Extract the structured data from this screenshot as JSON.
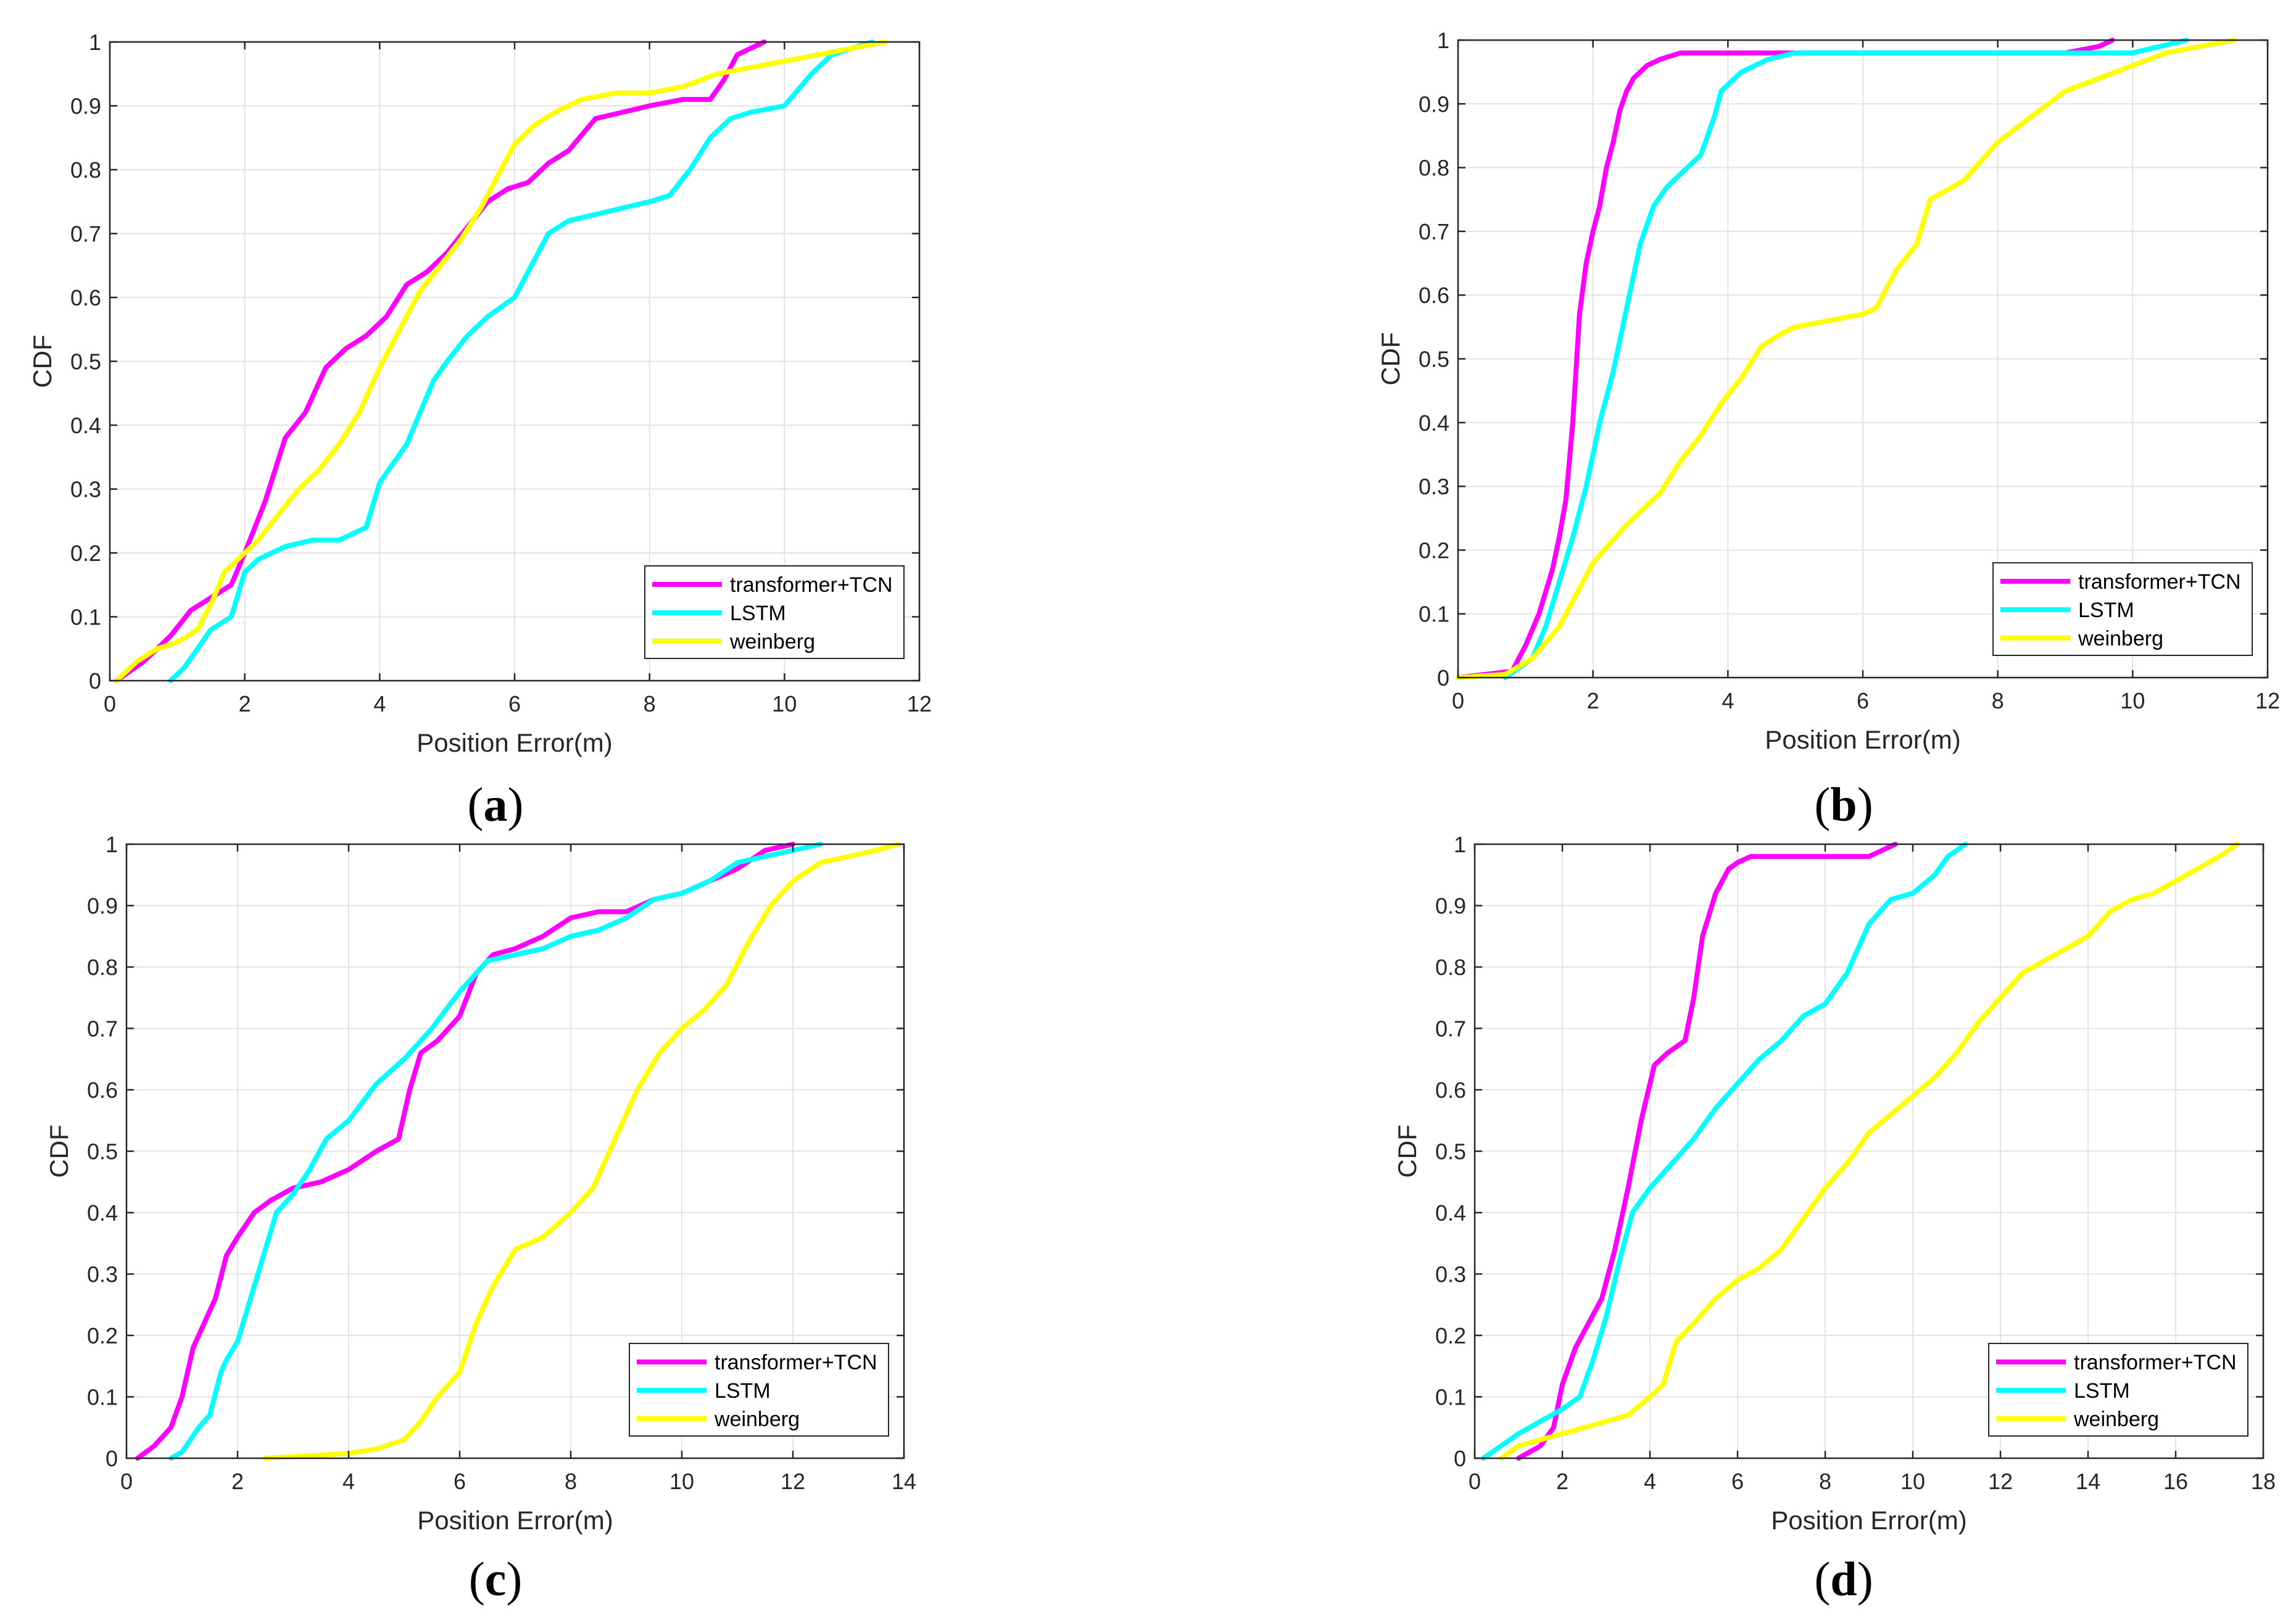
{
  "chart_data": [
    {
      "type": "line",
      "panel_label": "a",
      "xlabel": "Position Error(m)",
      "ylabel": "CDF",
      "xlim": [
        0,
        12
      ],
      "ylim": [
        0,
        1
      ],
      "xticks": [
        0,
        2,
        4,
        6,
        8,
        10,
        12
      ],
      "yticks": [
        0,
        0.1,
        0.2,
        0.3,
        0.4,
        0.5,
        0.6,
        0.7,
        0.8,
        0.9,
        1
      ],
      "grid": true,
      "legend_position": "bottom-right",
      "series": [
        {
          "name": "transformer+TCN",
          "color": "#ff00ff",
          "x": [
            0.1,
            0.5,
            0.9,
            1.2,
            1.5,
            1.8,
            2.0,
            2.3,
            2.6,
            2.9,
            3.2,
            3.5,
            3.8,
            4.1,
            4.4,
            4.7,
            5.0,
            5.3,
            5.6,
            5.9,
            6.2,
            6.5,
            6.8,
            7.2,
            7.6,
            8.0,
            8.5,
            8.9,
            9.1,
            9.3,
            9.5,
            9.7
          ],
          "y": [
            0,
            0.03,
            0.07,
            0.11,
            0.13,
            0.15,
            0.2,
            0.28,
            0.38,
            0.42,
            0.49,
            0.52,
            0.54,
            0.57,
            0.62,
            0.64,
            0.67,
            0.71,
            0.75,
            0.77,
            0.78,
            0.81,
            0.83,
            0.88,
            0.89,
            0.9,
            0.91,
            0.91,
            0.94,
            0.98,
            0.99,
            1.0
          ]
        },
        {
          "name": "LSTM",
          "color": "#00ffff",
          "x": [
            0.9,
            1.1,
            1.3,
            1.5,
            1.8,
            2.0,
            2.2,
            2.6,
            3.0,
            3.4,
            3.8,
            4.0,
            4.4,
            4.8,
            5.0,
            5.3,
            5.6,
            6.0,
            6.3,
            6.5,
            6.8,
            7.2,
            7.6,
            8.0,
            8.3,
            8.6,
            8.9,
            9.2,
            9.5,
            10.0,
            10.4,
            10.7,
            11.0,
            11.3
          ],
          "y": [
            0,
            0.02,
            0.05,
            0.08,
            0.1,
            0.17,
            0.19,
            0.21,
            0.22,
            0.22,
            0.24,
            0.31,
            0.37,
            0.47,
            0.5,
            0.54,
            0.57,
            0.6,
            0.66,
            0.7,
            0.72,
            0.73,
            0.74,
            0.75,
            0.76,
            0.8,
            0.85,
            0.88,
            0.89,
            0.9,
            0.95,
            0.98,
            0.99,
            1.0
          ]
        },
        {
          "name": "weinberg",
          "color": "#ffff00",
          "x": [
            0.1,
            0.4,
            0.7,
            1.0,
            1.3,
            1.5,
            1.7,
            1.9,
            2.2,
            2.5,
            2.8,
            3.1,
            3.4,
            3.7,
            4.0,
            4.3,
            4.6,
            4.9,
            5.2,
            5.5,
            5.8,
            6.0,
            6.3,
            6.6,
            7.0,
            7.5,
            8.0,
            8.5,
            9.0,
            9.5,
            10.0,
            10.5,
            11.0,
            11.5
          ],
          "y": [
            0,
            0.03,
            0.05,
            0.06,
            0.08,
            0.12,
            0.17,
            0.19,
            0.22,
            0.26,
            0.3,
            0.33,
            0.37,
            0.42,
            0.49,
            0.55,
            0.61,
            0.65,
            0.69,
            0.74,
            0.8,
            0.84,
            0.87,
            0.89,
            0.91,
            0.92,
            0.92,
            0.93,
            0.95,
            0.96,
            0.97,
            0.98,
            0.99,
            1.0
          ]
        }
      ]
    },
    {
      "type": "line",
      "panel_label": "b",
      "xlabel": "Position Error(m)",
      "ylabel": "CDF",
      "xlim": [
        0,
        12
      ],
      "ylim": [
        0,
        1
      ],
      "xticks": [
        0,
        2,
        4,
        6,
        8,
        10,
        12
      ],
      "yticks": [
        0,
        0.1,
        0.2,
        0.3,
        0.4,
        0.5,
        0.6,
        0.7,
        0.8,
        0.9,
        1
      ],
      "grid": true,
      "legend_position": "bottom-right",
      "series": [
        {
          "name": "transformer+TCN",
          "color": "#ff00ff",
          "x": [
            0,
            0.8,
            1.0,
            1.2,
            1.4,
            1.5,
            1.6,
            1.7,
            1.8,
            1.9,
            2.0,
            2.1,
            2.2,
            2.3,
            2.4,
            2.5,
            2.6,
            2.8,
            3.0,
            3.3,
            4.0,
            6.0,
            8.0,
            9.0,
            9.5,
            9.7
          ],
          "y": [
            0,
            0.01,
            0.05,
            0.1,
            0.17,
            0.22,
            0.28,
            0.4,
            0.57,
            0.65,
            0.7,
            0.74,
            0.8,
            0.84,
            0.89,
            0.92,
            0.94,
            0.96,
            0.97,
            0.98,
            0.98,
            0.98,
            0.98,
            0.98,
            0.99,
            1.0
          ]
        },
        {
          "name": "LSTM",
          "color": "#00ffff",
          "x": [
            0.7,
            1.1,
            1.3,
            1.5,
            1.7,
            1.9,
            2.1,
            2.3,
            2.5,
            2.7,
            2.9,
            3.1,
            3.3,
            3.6,
            3.8,
            3.9,
            4.2,
            4.6,
            5.0,
            6.0,
            8.0,
            9.5,
            10.0,
            10.4,
            10.8
          ],
          "y": [
            0,
            0.03,
            0.08,
            0.15,
            0.22,
            0.3,
            0.4,
            0.48,
            0.58,
            0.68,
            0.74,
            0.77,
            0.79,
            0.82,
            0.88,
            0.92,
            0.95,
            0.97,
            0.98,
            0.98,
            0.98,
            0.98,
            0.98,
            0.99,
            1.0
          ]
        },
        {
          "name": "weinberg",
          "color": "#ffff00",
          "x": [
            0,
            0.7,
            1.1,
            1.5,
            1.8,
            2.0,
            2.5,
            3.0,
            3.3,
            3.6,
            3.9,
            4.2,
            4.5,
            4.8,
            5.0,
            5.5,
            6.0,
            6.2,
            6.5,
            6.8,
            7.0,
            7.5,
            8.0,
            8.5,
            9.0,
            9.5,
            10.0,
            10.5,
            11.0,
            11.5
          ],
          "y": [
            0,
            0.005,
            0.03,
            0.08,
            0.14,
            0.18,
            0.24,
            0.29,
            0.34,
            0.38,
            0.43,
            0.47,
            0.52,
            0.54,
            0.55,
            0.56,
            0.57,
            0.58,
            0.64,
            0.68,
            0.75,
            0.78,
            0.84,
            0.88,
            0.92,
            0.94,
            0.96,
            0.98,
            0.99,
            1.0
          ]
        }
      ]
    },
    {
      "type": "line",
      "panel_label": "c",
      "xlabel": "Position Error(m)",
      "ylabel": "CDF",
      "xlim": [
        0,
        14
      ],
      "ylim": [
        0,
        1
      ],
      "xticks": [
        0,
        2,
        4,
        6,
        8,
        10,
        12,
        14
      ],
      "yticks": [
        0,
        0.1,
        0.2,
        0.3,
        0.4,
        0.5,
        0.6,
        0.7,
        0.8,
        0.9,
        1
      ],
      "grid": true,
      "legend_position": "bottom-right",
      "series": [
        {
          "name": "transformer+TCN",
          "color": "#ff00ff",
          "x": [
            0.2,
            0.5,
            0.8,
            1.0,
            1.2,
            1.4,
            1.6,
            1.8,
            2.0,
            2.3,
            2.6,
            3.0,
            3.5,
            4.0,
            4.5,
            4.9,
            5.1,
            5.3,
            5.6,
            6.0,
            6.3,
            6.6,
            7.0,
            7.5,
            8.0,
            8.5,
            9.0,
            9.5,
            10.0,
            10.5,
            11.0,
            11.5,
            12.0
          ],
          "y": [
            0,
            0.02,
            0.05,
            0.1,
            0.18,
            0.22,
            0.26,
            0.33,
            0.36,
            0.4,
            0.42,
            0.44,
            0.45,
            0.47,
            0.5,
            0.52,
            0.6,
            0.66,
            0.68,
            0.72,
            0.79,
            0.82,
            0.83,
            0.85,
            0.88,
            0.89,
            0.89,
            0.91,
            0.92,
            0.94,
            0.96,
            0.99,
            1.0
          ]
        },
        {
          "name": "LSTM",
          "color": "#00ffff",
          "x": [
            0.8,
            1.0,
            1.3,
            1.5,
            1.7,
            1.8,
            2.0,
            2.2,
            2.4,
            2.7,
            3.0,
            3.3,
            3.6,
            4.0,
            4.5,
            5.0,
            5.5,
            6.0,
            6.5,
            7.0,
            7.5,
            8.0,
            8.5,
            9.0,
            9.5,
            10.0,
            10.5,
            11.0,
            11.5,
            12.0,
            12.5
          ],
          "y": [
            0,
            0.01,
            0.05,
            0.07,
            0.14,
            0.16,
            0.19,
            0.25,
            0.31,
            0.4,
            0.43,
            0.47,
            0.52,
            0.55,
            0.61,
            0.65,
            0.7,
            0.76,
            0.81,
            0.82,
            0.83,
            0.85,
            0.86,
            0.88,
            0.91,
            0.92,
            0.94,
            0.97,
            0.98,
            0.99,
            1.0
          ]
        },
        {
          "name": "weinberg",
          "color": "#ffff00",
          "x": [
            2.5,
            3.5,
            4.0,
            4.5,
            5.0,
            5.3,
            5.6,
            6.0,
            6.3,
            6.6,
            7.0,
            7.5,
            8.0,
            8.4,
            8.8,
            9.2,
            9.6,
            10.0,
            10.4,
            10.8,
            11.2,
            11.6,
            12.0,
            12.5,
            13.0,
            13.5,
            13.9
          ],
          "y": [
            0,
            0.005,
            0.008,
            0.015,
            0.03,
            0.06,
            0.1,
            0.14,
            0.22,
            0.28,
            0.34,
            0.36,
            0.4,
            0.44,
            0.52,
            0.6,
            0.66,
            0.7,
            0.73,
            0.77,
            0.84,
            0.9,
            0.94,
            0.97,
            0.98,
            0.99,
            1.0
          ]
        }
      ]
    },
    {
      "type": "line",
      "panel_label": "d",
      "xlabel": "Position Error(m)",
      "ylabel": "CDF",
      "xlim": [
        0,
        18
      ],
      "ylim": [
        0,
        1
      ],
      "xticks": [
        0,
        2,
        4,
        6,
        8,
        10,
        12,
        14,
        16,
        18
      ],
      "yticks": [
        0,
        0.1,
        0.2,
        0.3,
        0.4,
        0.5,
        0.6,
        0.7,
        0.8,
        0.9,
        1
      ],
      "grid": true,
      "legend_position": "bottom-right",
      "series": [
        {
          "name": "transformer+TCN",
          "color": "#ff00ff",
          "x": [
            1.0,
            1.5,
            1.8,
            2.0,
            2.3,
            2.6,
            2.9,
            3.2,
            3.5,
            3.8,
            4.1,
            4.4,
            4.8,
            5.0,
            5.2,
            5.5,
            5.8,
            6.0,
            6.3,
            7.0,
            8.0,
            9.0,
            9.3,
            9.6
          ],
          "y": [
            0,
            0.02,
            0.05,
            0.12,
            0.18,
            0.22,
            0.26,
            0.34,
            0.44,
            0.55,
            0.64,
            0.66,
            0.68,
            0.75,
            0.85,
            0.92,
            0.96,
            0.97,
            0.98,
            0.98,
            0.98,
            0.98,
            0.99,
            1.0
          ]
        },
        {
          "name": "LSTM",
          "color": "#00ffff",
          "x": [
            0.2,
            0.6,
            1.0,
            1.5,
            2.0,
            2.4,
            2.7,
            3.0,
            3.3,
            3.6,
            4.0,
            4.5,
            5.0,
            5.5,
            6.0,
            6.5,
            7.0,
            7.5,
            8.0,
            8.5,
            9.0,
            9.5,
            10.0,
            10.5,
            10.8,
            11.2
          ],
          "y": [
            0,
            0.02,
            0.04,
            0.06,
            0.08,
            0.1,
            0.16,
            0.23,
            0.32,
            0.4,
            0.44,
            0.48,
            0.52,
            0.57,
            0.61,
            0.65,
            0.68,
            0.72,
            0.74,
            0.79,
            0.87,
            0.91,
            0.92,
            0.95,
            0.98,
            1.0
          ]
        },
        {
          "name": "weinberg",
          "color": "#ffff00",
          "x": [
            0.6,
            1.0,
            1.5,
            2.0,
            2.5,
            3.0,
            3.5,
            4.0,
            4.3,
            4.6,
            5.0,
            5.5,
            6.0,
            6.5,
            7.0,
            7.5,
            8.0,
            8.5,
            9.0,
            9.5,
            10.0,
            10.5,
            11.0,
            11.5,
            12.0,
            12.5,
            13.0,
            13.5,
            14.0,
            14.5,
            15.0,
            15.5,
            16.0,
            16.5,
            17.0,
            17.4
          ],
          "y": [
            0,
            0.02,
            0.03,
            0.04,
            0.05,
            0.06,
            0.07,
            0.1,
            0.12,
            0.19,
            0.22,
            0.26,
            0.29,
            0.31,
            0.34,
            0.39,
            0.44,
            0.48,
            0.53,
            0.56,
            0.59,
            0.62,
            0.66,
            0.71,
            0.75,
            0.79,
            0.81,
            0.83,
            0.85,
            0.89,
            0.91,
            0.92,
            0.94,
            0.96,
            0.98,
            1.0
          ]
        }
      ]
    }
  ]
}
